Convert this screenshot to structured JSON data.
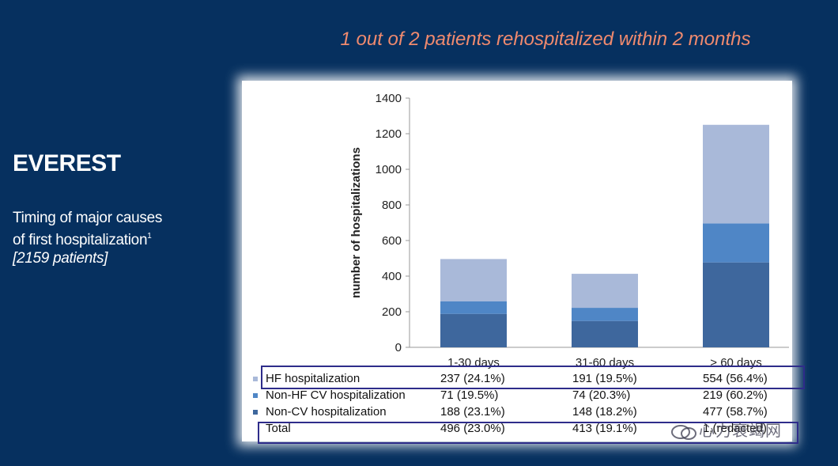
{
  "headline": "1 out of 2 patients rehospitalized within 2 months",
  "left": {
    "title": "EVEREST",
    "subtitle_line1": "Timing of major causes",
    "subtitle_line2": "of first hospitalization",
    "footnote": "1",
    "subtitle_line3": "[2159 patients]"
  },
  "colors": {
    "background": "#06305f",
    "headline": "#f08a6e",
    "hf": "#a9b9d9",
    "non_hf_cv": "#4f86c6",
    "non_cv": "#3e679d",
    "highlight_box": "#2e2c8a"
  },
  "chart_data": {
    "type": "bar",
    "stacked": true,
    "title": "",
    "xlabel": "",
    "ylabel": "number of hospitalizations",
    "ylim": [
      0,
      1400
    ],
    "yticks": [
      0,
      200,
      400,
      600,
      800,
      1000,
      1200,
      1400
    ],
    "categories": [
      "1-30 days",
      "31-60 days",
      "> 60 days"
    ],
    "series": [
      {
        "name": "Non-CV hospitalization",
        "values": [
          188,
          148,
          477
        ]
      },
      {
        "name": "Non-HF CV hospitalization",
        "values": [
          71,
          74,
          219
        ]
      },
      {
        "name": "HF hospitalization",
        "values": [
          237,
          191,
          554
        ]
      }
    ],
    "grid": false
  },
  "table": {
    "rows": [
      {
        "label": "HF hospitalization",
        "cells": [
          "237 (24.1%)",
          "191 (19.5%)",
          "554 (56.4%)"
        ],
        "highlight": true
      },
      {
        "label": "Non-HF CV hospitalization",
        "cells": [
          "71 (19.5%)",
          "74 (20.3%)",
          "219 (60.2%)"
        ],
        "highlight": false
      },
      {
        "label": "Non-CV hospitalization",
        "cells": [
          "188 (23.1%)",
          "148 (18.2%)",
          "477 (58.7%)"
        ],
        "highlight": false
      },
      {
        "label": "Total",
        "cells": [
          "496 (23.0%)",
          "413  (19.1%)",
          "1,(redacted)"
        ],
        "highlight": true
      }
    ]
  },
  "watermark": "心力衰竭网"
}
